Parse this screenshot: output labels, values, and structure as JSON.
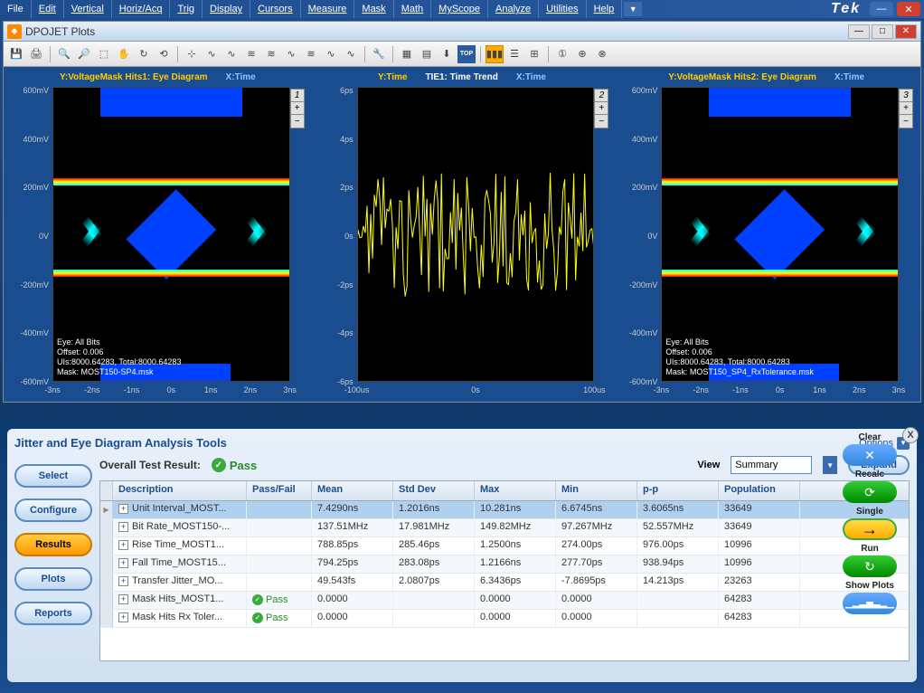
{
  "menu": [
    "File",
    "Edit",
    "Vertical",
    "Horiz/Acq",
    "Trig",
    "Display",
    "Cursors",
    "Measure",
    "Mask",
    "Math",
    "MyScope",
    "Analyze",
    "Utilities",
    "Help"
  ],
  "brand": "Tek",
  "window": {
    "title": "DPOJET Plots"
  },
  "plots": [
    {
      "ylabel": "Y:VoltageMask Hits1: Eye Diagram",
      "xlabel": "X:Time",
      "title": "",
      "yticks": [
        "600mV",
        "400mV",
        "200mV",
        "0V",
        "-200mV",
        "-400mV",
        "-600mV"
      ],
      "xticks": [
        "-3ns",
        "-2ns",
        "-1ns",
        "0s",
        "1ns",
        "2ns",
        "3ns"
      ],
      "zoom_number": "1",
      "info": [
        "Eye: All Bits",
        "Offset: 0.006",
        "UIs:8000.64283, Total:8000.64283",
        "Mask: MOST150-SP4.msk"
      ],
      "type": "eye"
    },
    {
      "ylabel": "Y:Time",
      "xlabel": "X:Time",
      "title": "TIE1: Time Trend",
      "yticks": [
        "6ps",
        "4ps",
        "2ps",
        "0s",
        "-2ps",
        "-4ps",
        "-6ps"
      ],
      "xticks": [
        "-100us",
        "0s",
        "100us"
      ],
      "zoom_number": "2",
      "info": [],
      "type": "trend"
    },
    {
      "ylabel": "Y:VoltageMask Hits2: Eye Diagram",
      "xlabel": "X:Time",
      "title": "",
      "yticks": [
        "600mV",
        "400mV",
        "200mV",
        "0V",
        "-200mV",
        "-400mV",
        "-600mV"
      ],
      "xticks": [
        "-3ns",
        "-2ns",
        "-1ns",
        "0s",
        "1ns",
        "2ns",
        "3ns"
      ],
      "zoom_number": "3",
      "info": [
        "Eye: All Bits",
        "Offset: 0.006",
        "UIs:8000.64283, Total:8000.64283",
        "Mask: MOST150_SP4_RxTolerance.msk"
      ],
      "type": "eye"
    }
  ],
  "analysis": {
    "title": "Jitter and Eye Diagram Analysis Tools",
    "options": "Options",
    "overall_label": "Overall Test Result:",
    "pass": "Pass",
    "view_label": "View",
    "view_value": "Summary",
    "expand": "Expand",
    "side_buttons": [
      "Select",
      "Configure",
      "Results",
      "Plots",
      "Reports"
    ],
    "active_side": "Results",
    "columns": [
      "Description",
      "Pass/Fail",
      "Mean",
      "Std Dev",
      "Max",
      "Min",
      "p-p",
      "Population"
    ],
    "rows": [
      {
        "desc": "Unit Interval_MOST...",
        "pf": "",
        "mean": "7.4290ns",
        "std": "1.2016ns",
        "max": "10.281ns",
        "min": "6.6745ns",
        "pp": "3.6065ns",
        "pop": "33649",
        "sel": true
      },
      {
        "desc": "Bit Rate_MOST150-...",
        "pf": "",
        "mean": "137.51MHz",
        "std": "17.981MHz",
        "max": "149.82MHz",
        "min": "97.267MHz",
        "pp": "52.557MHz",
        "pop": "33649"
      },
      {
        "desc": "Rise Time_MOST1...",
        "pf": "",
        "mean": "788.85ps",
        "std": "285.46ps",
        "max": "1.2500ns",
        "min": "274.00ps",
        "pp": "976.00ps",
        "pop": "10996"
      },
      {
        "desc": "Fall Time_MOST15...",
        "pf": "",
        "mean": "794.25ps",
        "std": "283.08ps",
        "max": "1.2166ns",
        "min": "277.70ps",
        "pp": "938.94ps",
        "pop": "10996"
      },
      {
        "desc": "Transfer Jitter_MO...",
        "pf": "",
        "mean": "49.543fs",
        "std": "2.0807ps",
        "max": "6.3436ps",
        "min": "-7.8695ps",
        "pp": "14.213ps",
        "pop": "23263"
      },
      {
        "desc": "Mask Hits_MOST1...",
        "pf": "Pass",
        "mean": "0.0000",
        "std": "",
        "max": "0.0000",
        "min": "0.0000",
        "pp": "",
        "pop": "64283"
      },
      {
        "desc": "Mask Hits Rx Toler...",
        "pf": "Pass",
        "mean": "0.0000",
        "std": "",
        "max": "0.0000",
        "min": "0.0000",
        "pp": "",
        "pop": "64283"
      }
    ]
  },
  "right_controls": {
    "clear": "Clear",
    "recalc": "Recalc",
    "single": "Single",
    "run": "Run",
    "show_plots": "Show Plots"
  },
  "colors": {
    "bg_gradient_top": "#1a4d8f",
    "bg_gradient_bot": "#0d2b52",
    "accent_blue": "#3a6ab0",
    "pass_green": "#3aaa3a",
    "highlight_orange": "#ff9900"
  }
}
